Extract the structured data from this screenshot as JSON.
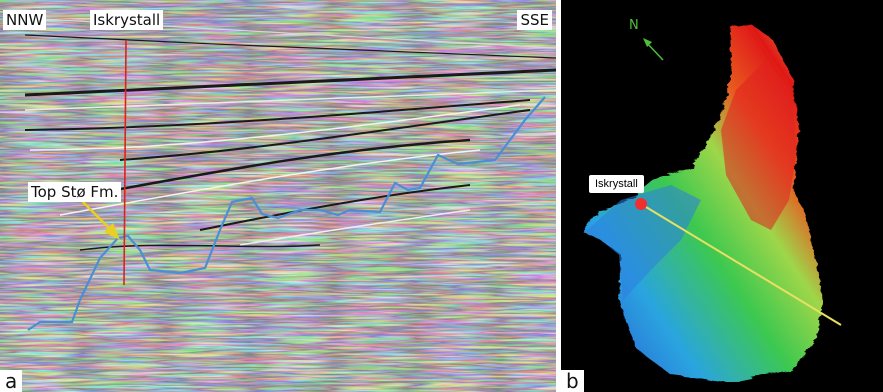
{
  "panel_a": {
    "label_left": "NNW",
    "label_well": "Iskrystall",
    "label_right": "SSE",
    "formation_label": "Top Stø Fm.",
    "panel_letter": "a"
  },
  "panel_b": {
    "north_label": "N",
    "well_label": "Iskrystall",
    "panel_letter": "b"
  },
  "colors": {
    "horizon": "#4a8fd6",
    "well_line": "#e02020",
    "arrow": "#e8d020",
    "section_line": "#e8e060",
    "north_arrow": "#4fbf3a"
  }
}
